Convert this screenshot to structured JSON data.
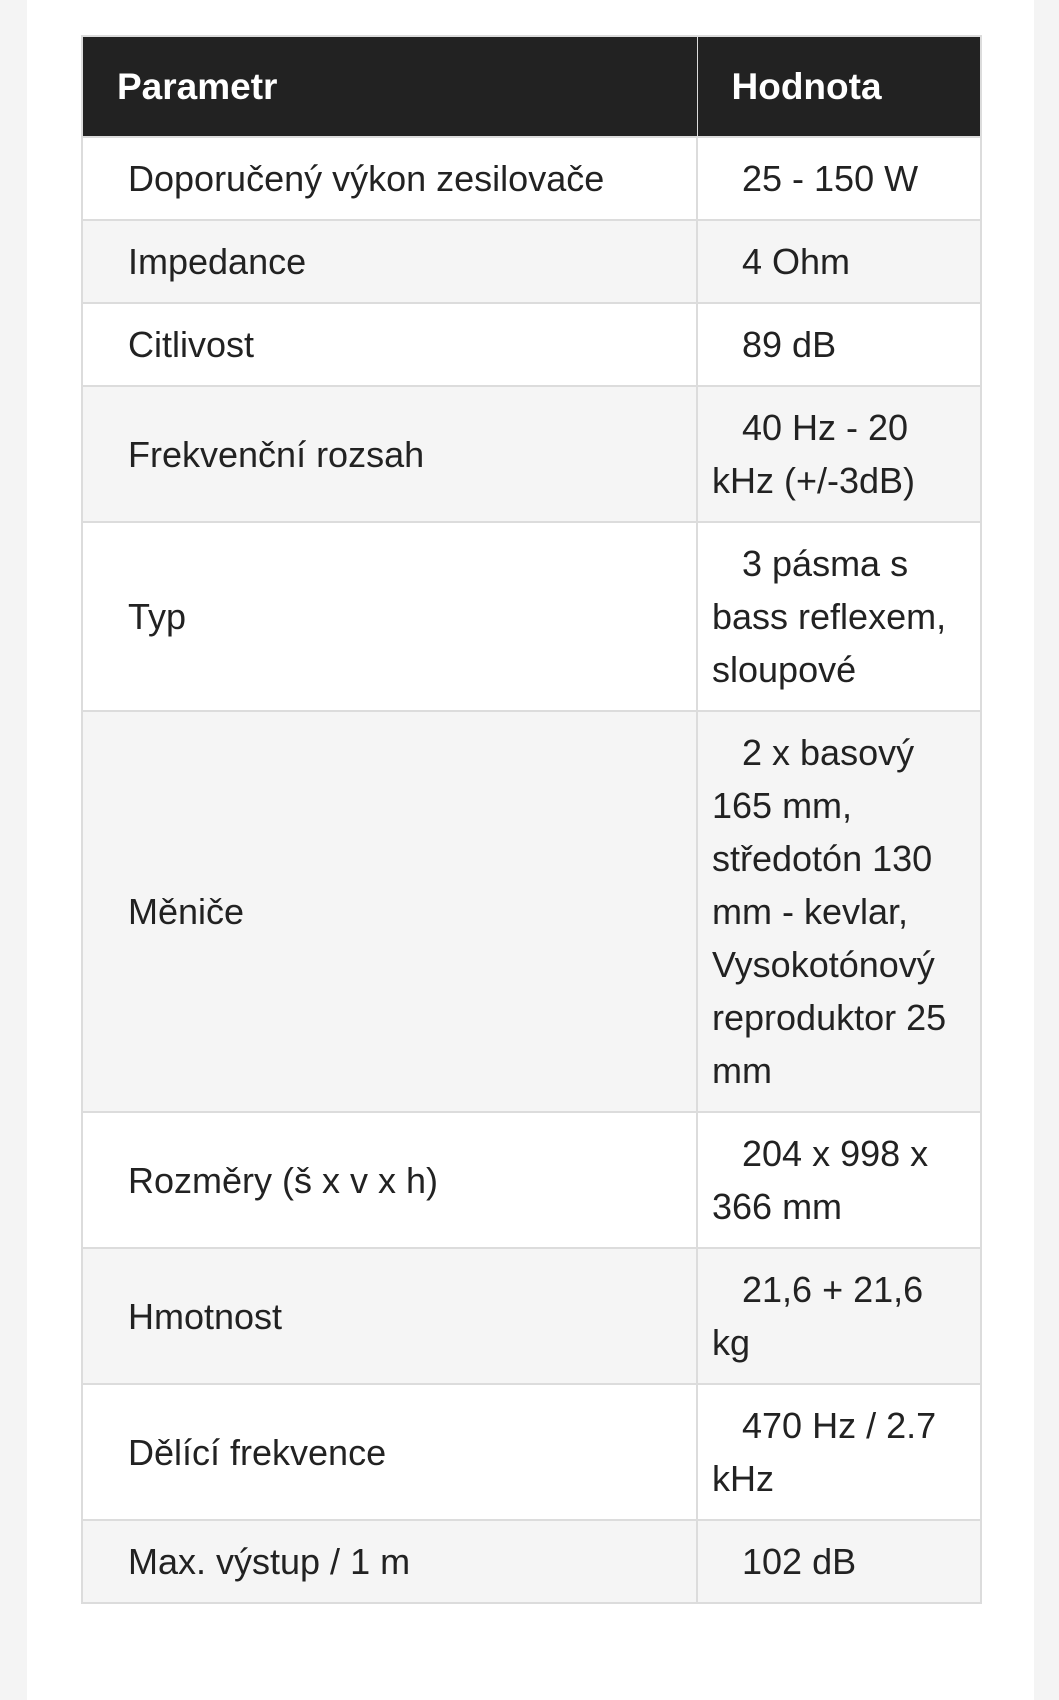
{
  "table": {
    "headers": [
      "Parametr",
      "Hodnota"
    ],
    "rows": [
      {
        "param": "Doporučený výkon zesilovače",
        "value": "25 - 150 W"
      },
      {
        "param": "Impedance",
        "value": "4 Ohm"
      },
      {
        "param": "Citlivost",
        "value": "89 dB"
      },
      {
        "param": "Frekvenční rozsah",
        "value": "40 Hz - 20 kHz (+/-3dB)"
      },
      {
        "param": "Typ",
        "value": "3 pásma s bass reflexem, sloupové"
      },
      {
        "param": "Měniče",
        "value": "2 x basový 165 mm, středotón 130 mm - kevlar, Vysokotónový reproduktor 25 mm"
      },
      {
        "param": "Rozměry (š x v x h)",
        "value": "204 x 998 x 366 mm"
      },
      {
        "param": "Hmotnost",
        "value": "21,6 + 21,6 kg"
      },
      {
        "param": "Dělící frekvence",
        "value": "470 Hz / 2.7 kHz"
      },
      {
        "param": "Max. výstup / 1 m",
        "value": "102 dB"
      }
    ]
  },
  "colors": {
    "header_bg": "#222222",
    "header_text": "#ffffff",
    "row_alt": "#f5f5f5",
    "border": "#dcdcdc"
  }
}
